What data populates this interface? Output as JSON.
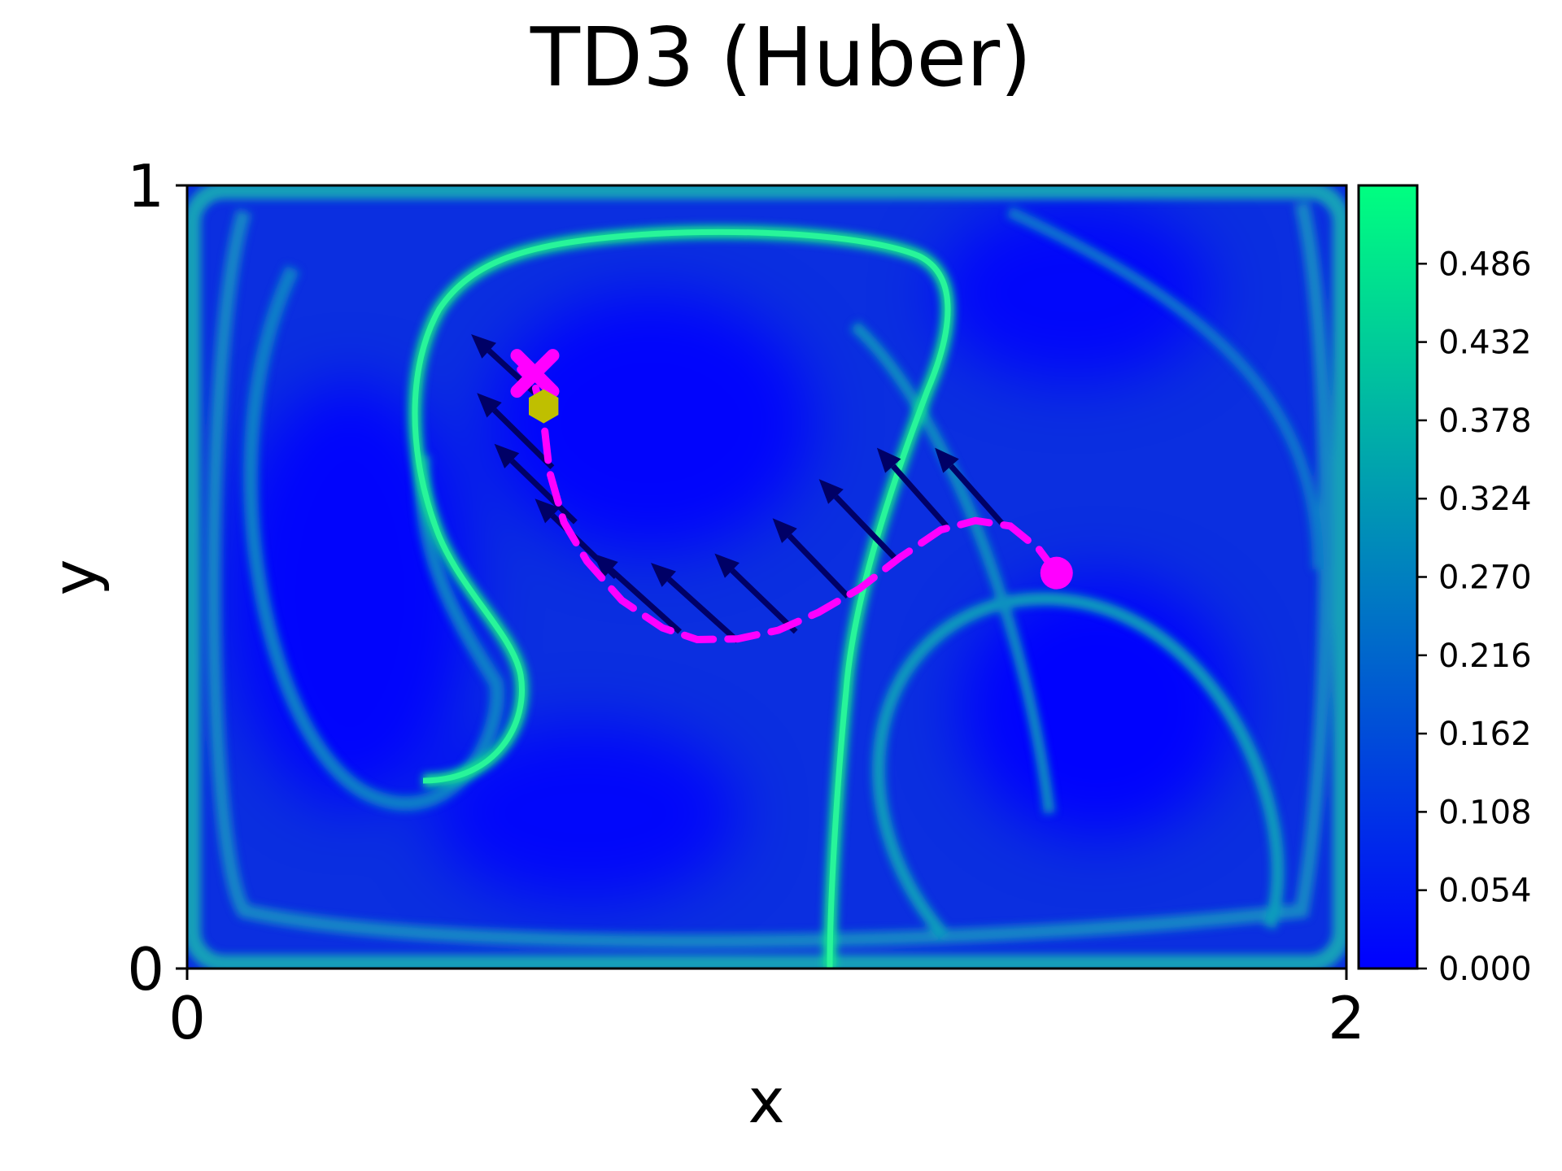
{
  "chart_data": {
    "type": "heatmap",
    "title": "TD3 (Huber)",
    "xlabel": "x",
    "ylabel": "y",
    "xlim": [
      0,
      2
    ],
    "ylim": [
      0,
      1
    ],
    "x_ticks": [
      {
        "value": 0,
        "label": "0"
      },
      {
        "value": 2,
        "label": "2"
      }
    ],
    "y_ticks": [
      {
        "value": 0,
        "label": "0"
      },
      {
        "value": 1,
        "label": "1"
      }
    ],
    "grid": false,
    "colormap": {
      "name": "winter",
      "low": "#0000ff",
      "high": "#00ff80"
    },
    "colorbar": {
      "range": [
        0,
        0.54
      ],
      "ticks": [
        {
          "value": 0.0,
          "label": "0.000"
        },
        {
          "value": 0.054,
          "label": "0.054"
        },
        {
          "value": 0.108,
          "label": "0.108"
        },
        {
          "value": 0.162,
          "label": "0.162"
        },
        {
          "value": 0.216,
          "label": "0.216"
        },
        {
          "value": 0.27,
          "label": "0.270"
        },
        {
          "value": 0.324,
          "label": "0.324"
        },
        {
          "value": 0.378,
          "label": "0.378"
        },
        {
          "value": 0.432,
          "label": "0.432"
        },
        {
          "value": 0.486,
          "label": "0.486"
        }
      ]
    },
    "trajectory": {
      "color": "#ff00ff",
      "style": "dashed",
      "points": [
        [
          1.5,
          0.505
        ],
        [
          1.47,
          0.535
        ],
        [
          1.42,
          0.565
        ],
        [
          1.36,
          0.572
        ],
        [
          1.3,
          0.56
        ],
        [
          1.23,
          0.525
        ],
        [
          1.16,
          0.485
        ],
        [
          1.09,
          0.455
        ],
        [
          1.02,
          0.432
        ],
        [
          0.95,
          0.421
        ],
        [
          0.88,
          0.42
        ],
        [
          0.82,
          0.435
        ],
        [
          0.75,
          0.47
        ],
        [
          0.69,
          0.52
        ],
        [
          0.65,
          0.57
        ],
        [
          0.625,
          0.635
        ],
        [
          0.615,
          0.7
        ],
        [
          0.6,
          0.745
        ],
        [
          0.575,
          0.765
        ]
      ]
    },
    "start_marker": {
      "x": 1.5,
      "y": 0.505,
      "shape": "circle",
      "color": "#ff00ff"
    },
    "end_marker": {
      "x": 0.6,
      "y": 0.76,
      "shape": "x",
      "color": "#ff00ff"
    },
    "target_marker": {
      "x": 0.615,
      "y": 0.718,
      "shape": "hexagon",
      "color": "#bfbf00"
    },
    "arrow_color": "#000066",
    "arrows": [
      {
        "x": 0.6,
        "y": 0.735,
        "dx": -0.11,
        "dy": 0.075
      },
      {
        "x": 0.63,
        "y": 0.64,
        "dx": -0.13,
        "dy": 0.095
      },
      {
        "x": 0.67,
        "y": 0.57,
        "dx": -0.14,
        "dy": 0.1
      },
      {
        "x": 0.74,
        "y": 0.5,
        "dx": -0.14,
        "dy": 0.1
      },
      {
        "x": 0.85,
        "y": 0.43,
        "dx": -0.15,
        "dy": 0.1
      },
      {
        "x": 0.95,
        "y": 0.418,
        "dx": -0.15,
        "dy": 0.1
      },
      {
        "x": 1.05,
        "y": 0.43,
        "dx": -0.14,
        "dy": 0.1
      },
      {
        "x": 1.14,
        "y": 0.475,
        "dx": -0.13,
        "dy": 0.1
      },
      {
        "x": 1.22,
        "y": 0.525,
        "dx": -0.13,
        "dy": 0.1
      },
      {
        "x": 1.31,
        "y": 0.565,
        "dx": -0.12,
        "dy": 0.1
      },
      {
        "x": 1.41,
        "y": 0.565,
        "dx": -0.12,
        "dy": 0.1
      }
    ]
  }
}
